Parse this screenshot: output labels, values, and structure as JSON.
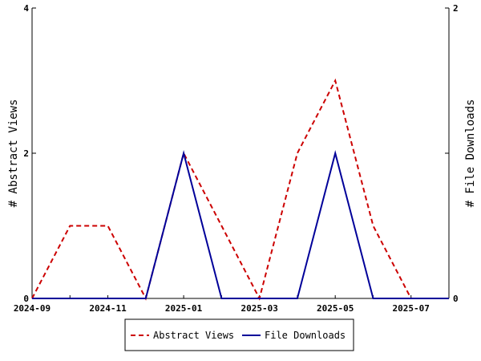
{
  "chart_data": {
    "type": "line",
    "x": [
      "2024-09",
      "2024-10",
      "2024-11",
      "2024-12",
      "2025-01",
      "2025-02",
      "2025-03",
      "2025-04",
      "2025-05",
      "2025-06",
      "2025-07",
      "2025-08"
    ],
    "x_ticks": [
      "2024-09",
      "2024-11",
      "2025-01",
      "2025-03",
      "2025-05",
      "2025-07"
    ],
    "series": [
      {
        "name": "Abstract Views",
        "axis": "left",
        "color": "#cc0000",
        "dash": "dashed",
        "values": [
          0,
          1,
          1,
          0,
          2,
          1,
          0,
          2,
          3,
          1,
          0,
          0
        ]
      },
      {
        "name": "File Downloads",
        "axis": "right",
        "color": "#000099",
        "dash": "solid",
        "values": [
          0,
          0,
          0,
          0,
          1,
          0,
          0,
          0,
          1,
          0,
          0,
          0
        ]
      }
    ],
    "ylabel_left": "# Abstract Views",
    "ylabel_right": "# File Downloads",
    "ylim_left": [
      0,
      4
    ],
    "ylim_right": [
      0,
      2
    ],
    "yticks_left": [
      "0",
      "2",
      "4"
    ],
    "yticks_right": [
      "0",
      "1",
      "2"
    ],
    "grid": false,
    "legend_position": "bottom-center"
  }
}
